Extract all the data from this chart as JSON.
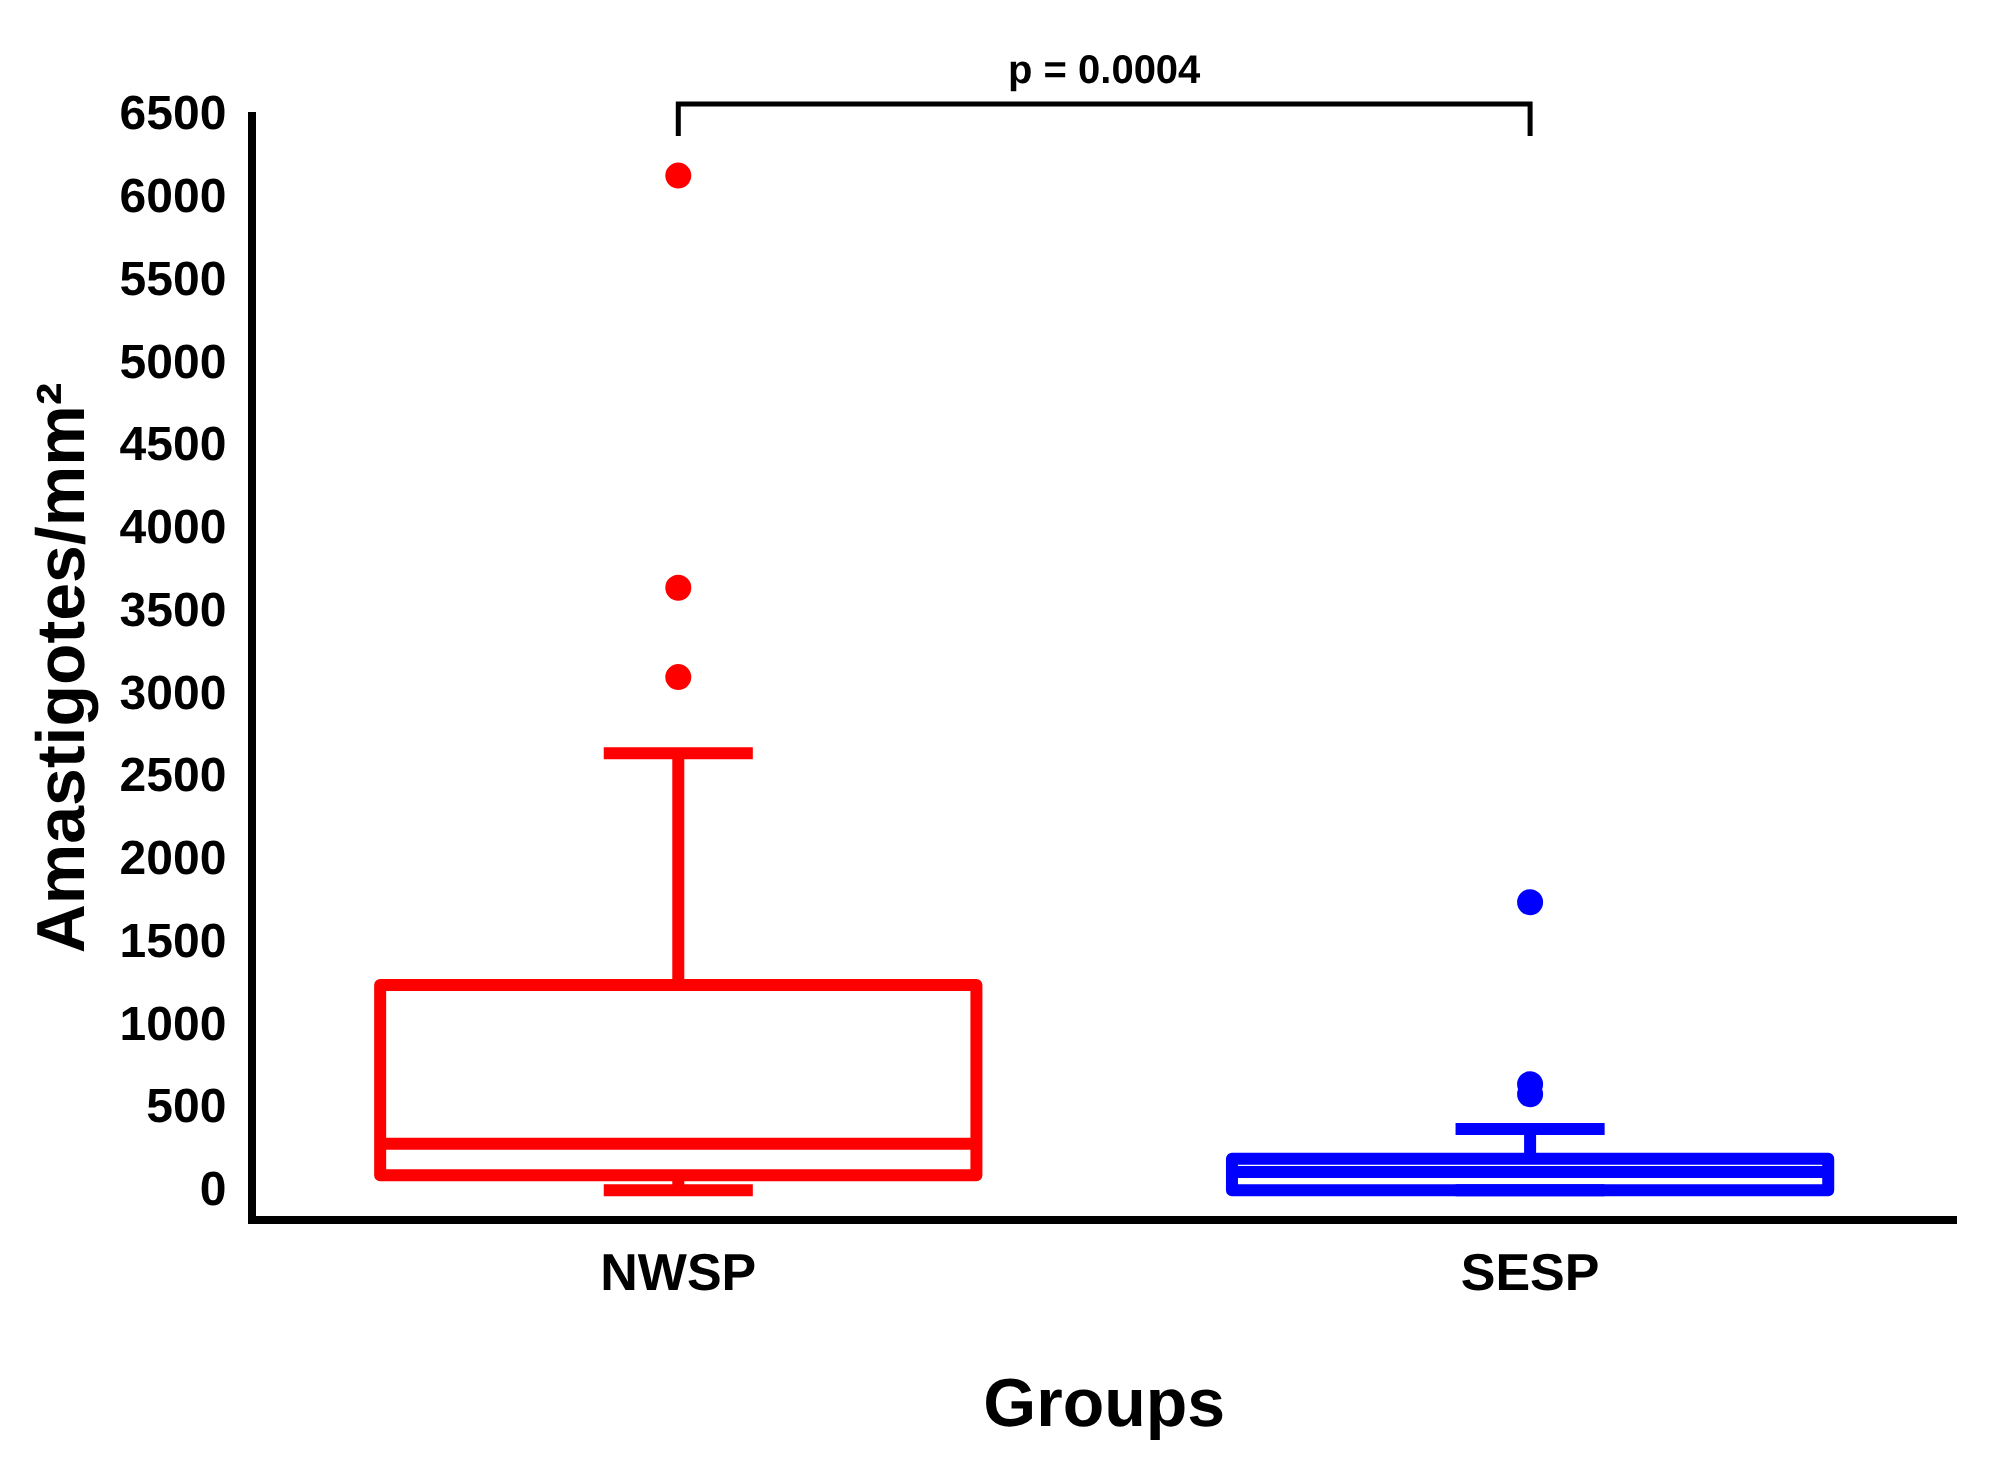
{
  "chart_data": {
    "type": "box",
    "xlabel": "Groups",
    "ylabel": "Amastigotes/mm²",
    "categories": [
      "NWSP",
      "SESP"
    ],
    "colors": [
      "#ff0000",
      "#0000ff"
    ],
    "boxes": [
      {
        "low": 10,
        "q1": 100,
        "median": 290,
        "q3": 1250,
        "high": 2650,
        "outliers": [
          6140,
          3650,
          3110
        ]
      },
      {
        "low": 10,
        "q1": 10,
        "median": 120,
        "q3": 200,
        "high": 380,
        "outliers": [
          1750,
          590,
          650
        ]
      }
    ],
    "ylim": [
      -170,
      6500
    ],
    "yticks": [
      0,
      500,
      1000,
      1500,
      2000,
      2500,
      3000,
      3500,
      4000,
      4500,
      5000,
      5500,
      6000,
      6500
    ],
    "grid": false,
    "legend": false,
    "annotations": [
      "p = 0.0004"
    ]
  }
}
